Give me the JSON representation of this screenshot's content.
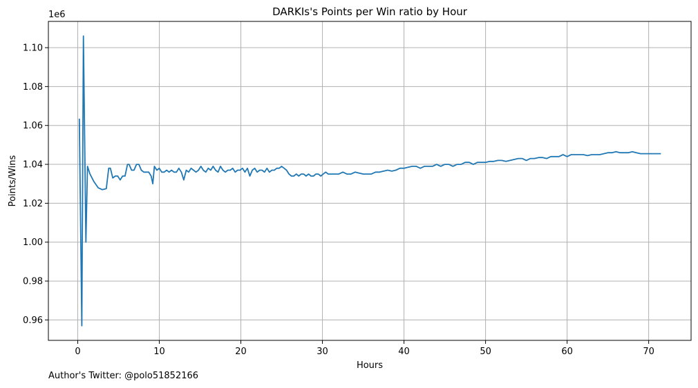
{
  "chart_data": {
    "type": "line",
    "title": "DARKIs's Points per Win ratio by Hour",
    "xlabel": "Hours",
    "ylabel": "Points/Wins",
    "y_offset_label": "1e6",
    "xlim": [
      -3.6,
      75.2
    ],
    "ylim": [
      0.9495,
      1.1135
    ],
    "x_ticks": [
      0,
      10,
      20,
      30,
      40,
      50,
      60,
      70
    ],
    "y_ticks": [
      0.96,
      0.98,
      1.0,
      1.02,
      1.04,
      1.06,
      1.08,
      1.1
    ],
    "y_tick_labels": [
      "0.96",
      "0.98",
      "1.00",
      "1.02",
      "1.04",
      "1.06",
      "1.08",
      "1.10"
    ],
    "grid": true,
    "line_color": "#1f77b4",
    "series": [
      {
        "x": [
          0.2,
          0.5,
          0.7,
          1.0,
          1.2,
          1.5,
          2.0,
          2.5,
          3.0,
          3.5,
          3.8,
          4.0,
          4.3,
          4.6,
          4.9,
          5.2,
          5.5,
          5.8,
          6.1,
          6.3,
          6.6,
          6.9,
          7.2,
          7.5,
          7.8,
          8.1,
          8.4,
          8.7,
          9.0,
          9.2,
          9.4,
          9.7,
          10.0,
          10.3,
          10.6,
          10.9,
          11.2,
          11.5,
          11.8,
          12.1,
          12.4,
          12.7,
          13.0,
          13.3,
          13.6,
          13.9,
          14.2,
          14.5,
          14.8,
          15.1,
          15.4,
          15.7,
          16.0,
          16.3,
          16.6,
          16.9,
          17.2,
          17.5,
          17.8,
          18.1,
          18.4,
          18.7,
          19.0,
          19.3,
          19.6,
          19.9,
          20.2,
          20.5,
          20.8,
          21.1,
          21.4,
          21.7,
          22.0,
          22.3,
          22.6,
          22.9,
          23.2,
          23.5,
          23.8,
          24.1,
          24.4,
          24.7,
          25.0,
          25.3,
          25.6,
          25.9,
          26.2,
          26.5,
          26.8,
          27.1,
          27.4,
          27.7,
          28.0,
          28.3,
          28.6,
          28.9,
          29.2,
          29.5,
          29.8,
          30.1,
          30.4,
          30.7,
          31.0,
          31.5,
          32.0,
          32.5,
          33.0,
          33.5,
          34.0,
          34.5,
          35.0,
          35.5,
          36.0,
          36.5,
          37.0,
          37.5,
          38.0,
          38.5,
          39.0,
          39.5,
          40.0,
          40.5,
          41.0,
          41.5,
          42.0,
          42.5,
          43.0,
          43.5,
          44.0,
          44.5,
          45.0,
          45.5,
          46.0,
          46.5,
          47.0,
          47.5,
          48.0,
          48.5,
          49.0,
          49.5,
          50.0,
          50.5,
          51.0,
          51.5,
          52.0,
          52.5,
          53.0,
          53.5,
          54.0,
          54.5,
          55.0,
          55.5,
          56.0,
          56.5,
          57.0,
          57.5,
          58.0,
          58.5,
          59.0,
          59.5,
          60.0,
          60.5,
          61.0,
          61.5,
          62.0,
          62.5,
          63.0,
          63.5,
          64.0,
          64.5,
          65.0,
          65.5,
          66.0,
          66.5,
          67.0,
          67.5,
          68.0,
          68.5,
          69.0,
          69.5,
          70.0,
          70.5,
          71.0,
          71.5
        ],
        "y": [
          1.0635,
          0.957,
          1.106,
          1.0,
          1.039,
          1.035,
          1.031,
          1.028,
          1.027,
          1.0275,
          1.038,
          1.038,
          1.033,
          1.034,
          1.034,
          1.032,
          1.034,
          1.034,
          1.04,
          1.04,
          1.037,
          1.037,
          1.04,
          1.04,
          1.037,
          1.036,
          1.036,
          1.036,
          1.034,
          1.03,
          1.039,
          1.037,
          1.038,
          1.036,
          1.036,
          1.037,
          1.036,
          1.037,
          1.036,
          1.036,
          1.038,
          1.036,
          1.032,
          1.037,
          1.036,
          1.038,
          1.037,
          1.036,
          1.037,
          1.039,
          1.037,
          1.036,
          1.038,
          1.037,
          1.039,
          1.037,
          1.036,
          1.039,
          1.037,
          1.036,
          1.037,
          1.037,
          1.038,
          1.036,
          1.037,
          1.037,
          1.038,
          1.036,
          1.038,
          1.034,
          1.037,
          1.038,
          1.036,
          1.037,
          1.037,
          1.036,
          1.038,
          1.036,
          1.037,
          1.037,
          1.038,
          1.038,
          1.039,
          1.038,
          1.037,
          1.035,
          1.034,
          1.034,
          1.035,
          1.034,
          1.035,
          1.035,
          1.034,
          1.035,
          1.034,
          1.034,
          1.035,
          1.035,
          1.034,
          1.035,
          1.036,
          1.035,
          1.035,
          1.035,
          1.035,
          1.036,
          1.035,
          1.035,
          1.036,
          1.0355,
          1.035,
          1.035,
          1.035,
          1.036,
          1.036,
          1.0365,
          1.037,
          1.0365,
          1.037,
          1.038,
          1.038,
          1.0385,
          1.039,
          1.039,
          1.038,
          1.039,
          1.039,
          1.039,
          1.04,
          1.039,
          1.04,
          1.04,
          1.039,
          1.04,
          1.04,
          1.041,
          1.041,
          1.04,
          1.041,
          1.041,
          1.041,
          1.0415,
          1.0415,
          1.042,
          1.042,
          1.0415,
          1.042,
          1.0425,
          1.043,
          1.043,
          1.042,
          1.043,
          1.043,
          1.0435,
          1.0435,
          1.043,
          1.044,
          1.044,
          1.044,
          1.045,
          1.044,
          1.045,
          1.045,
          1.045,
          1.045,
          1.0445,
          1.045,
          1.045,
          1.045,
          1.0455,
          1.046,
          1.046,
          1.0465,
          1.046,
          1.046,
          1.046,
          1.0465,
          1.046,
          1.0455,
          1.0455,
          1.0455,
          1.0455,
          1.0455,
          1.0455
        ]
      }
    ]
  },
  "footer": {
    "text": "Author's Twitter: @polo51852166"
  }
}
